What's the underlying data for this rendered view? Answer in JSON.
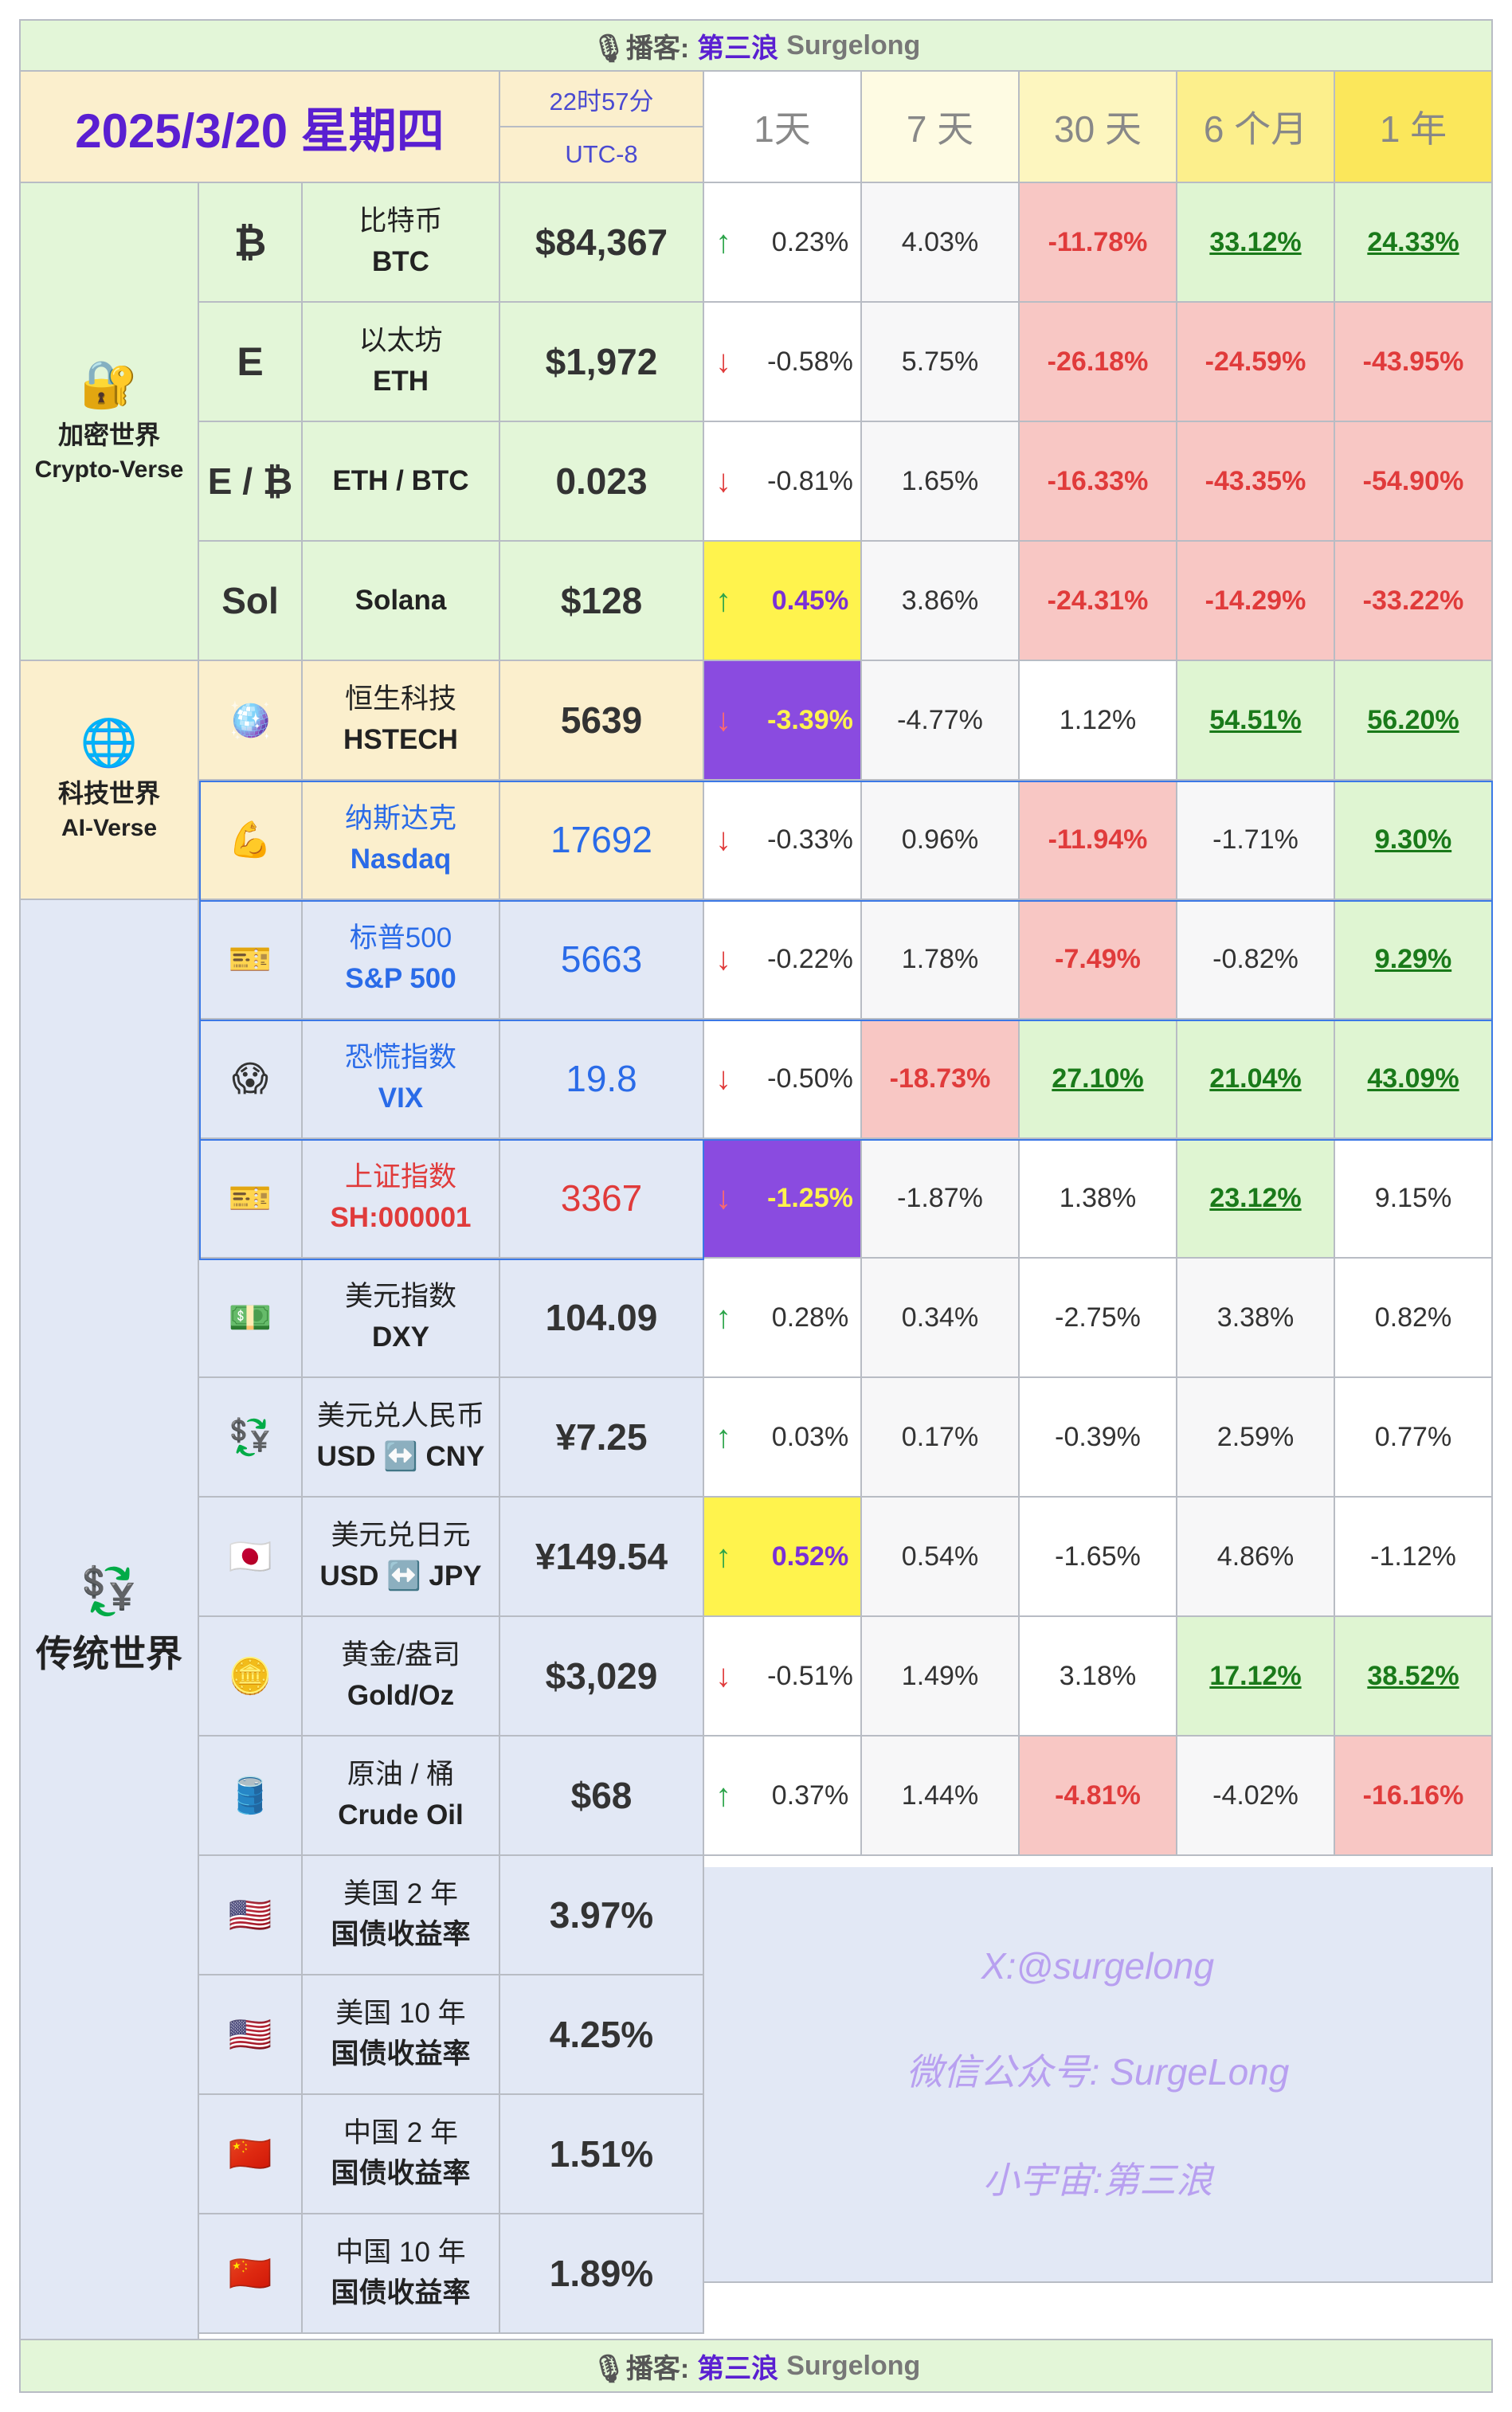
{
  "banner": {
    "icon": "microphone-icon",
    "prefix": "🎙播客:",
    "name": "第三浪",
    "latin": "Surgelong"
  },
  "header": {
    "date": "2025/3/20 星期四",
    "time": "22时57分",
    "tz": "UTC-8",
    "periods": [
      "1天",
      "7 天",
      "30 天",
      "6 个月",
      "1 年"
    ]
  },
  "groups": {
    "crypto": {
      "icon": "lock-key-icon",
      "glyph": "🔐",
      "zh": "加密世界",
      "en": "Crypto-Verse"
    },
    "tech": {
      "icon": "globe-icon",
      "glyph": "🌐",
      "zh": "科技世界",
      "en": "AI-Verse"
    },
    "trad": {
      "icon": "currency-exchange-icon",
      "glyph": "💱",
      "zh": "传统世界"
    }
  },
  "rows": [
    {
      "sym": "₿",
      "zh": "比特币",
      "en": "BTC",
      "price": "$84,367",
      "dir": "up",
      "d1": "0.23%",
      "d7": "4.03%",
      "d30": "-11.78%",
      "m6": "33.12%",
      "y1": "24.33%"
    },
    {
      "sym": "Ε",
      "zh": "以太坊",
      "en": "ETH",
      "price": "$1,972",
      "dir": "dn",
      "d1": "-0.58%",
      "d7": "5.75%",
      "d30": "-26.18%",
      "m6": "-24.59%",
      "y1": "-43.95%"
    },
    {
      "sym": "Ε / ₿",
      "zh": "",
      "en": "ETH / BTC",
      "price": "0.023",
      "dir": "dn",
      "d1": "-0.81%",
      "d7": "1.65%",
      "d30": "-16.33%",
      "m6": "-43.35%",
      "y1": "-54.90%"
    },
    {
      "sym": "Sol",
      "zh": "",
      "en": "Solana",
      "price": "$128",
      "dir": "up",
      "d1": "0.45%",
      "d7": "3.86%",
      "d30": "-24.31%",
      "m6": "-14.29%",
      "y1": "-33.22%"
    },
    {
      "sym": "🪩",
      "zh": "恒生科技",
      "en": "HSTECH",
      "price": "5639",
      "dir": "dn",
      "d1": "-3.39%",
      "d7": "-4.77%",
      "d30": "1.12%",
      "m6": "54.51%",
      "y1": "56.20%"
    },
    {
      "sym": "💪",
      "zh": "纳斯达克",
      "en": "Nasdaq",
      "price": "17692",
      "dir": "dn",
      "d1": "-0.33%",
      "d7": "0.96%",
      "d30": "-11.94%",
      "m6": "-1.71%",
      "y1": "9.30%"
    },
    {
      "sym": "🎫",
      "zh": "标普500",
      "en": "S&P 500",
      "price": "5663",
      "dir": "dn",
      "d1": "-0.22%",
      "d7": "1.78%",
      "d30": "-7.49%",
      "m6": "-0.82%",
      "y1": "9.29%"
    },
    {
      "sym": "😱",
      "zh": "恐慌指数",
      "en": "VIX",
      "price": "19.8",
      "dir": "dn",
      "d1": "-0.50%",
      "d7": "-18.73%",
      "d30": "27.10%",
      "m6": "21.04%",
      "y1": "43.09%"
    },
    {
      "sym": "🎫",
      "zh": "上证指数",
      "en": "SH:000001",
      "price": "3367",
      "dir": "dn",
      "d1": "-1.25%",
      "d7": "-1.87%",
      "d30": "1.38%",
      "m6": "23.12%",
      "y1": "9.15%"
    },
    {
      "sym": "💵",
      "zh": "美元指数",
      "en": "DXY",
      "price": "104.09",
      "dir": "up",
      "d1": "0.28%",
      "d7": "0.34%",
      "d30": "-2.75%",
      "m6": "3.38%",
      "y1": "0.82%"
    },
    {
      "sym": "💱",
      "zh": "美元兑人民币",
      "en": "USD ↔️ CNY",
      "price": "¥7.25",
      "dir": "up",
      "d1": "0.03%",
      "d7": "0.17%",
      "d30": "-0.39%",
      "m6": "2.59%",
      "y1": "0.77%"
    },
    {
      "sym": "🇯🇵",
      "zh": "美元兑日元",
      "en": "USD ↔️ JPY",
      "price": "¥149.54",
      "dir": "up",
      "d1": "0.52%",
      "d7": "0.54%",
      "d30": "-1.65%",
      "m6": "4.86%",
      "y1": "-1.12%"
    },
    {
      "sym": "🪙",
      "zh": "黄金/盎司",
      "en": "Gold/Oz",
      "price": "$3,029",
      "dir": "dn",
      "d1": "-0.51%",
      "d7": "1.49%",
      "d30": "3.18%",
      "m6": "17.12%",
      "y1": "38.52%"
    },
    {
      "sym": "🛢️",
      "zh": "原油 / 桶",
      "en": "Crude Oil",
      "price": "$68",
      "dir": "up",
      "d1": "0.37%",
      "d7": "1.44%",
      "d30": "-4.81%",
      "m6": "-4.02%",
      "y1": "-16.16%"
    },
    {
      "sym": "🇺🇸",
      "zh": "美国 2 年",
      "en": "国债收益率",
      "price": "3.97%"
    },
    {
      "sym": "🇺🇸",
      "zh": "美国 10 年",
      "en": "国债收益率",
      "price": "4.25%"
    },
    {
      "sym": "🇨🇳",
      "zh": "中国 2 年",
      "en": "国债收益率",
      "price": "1.51%"
    },
    {
      "sym": "🇨🇳",
      "zh": "中国 10 年",
      "en": "国债收益率",
      "price": "1.89%"
    }
  ],
  "arrows": {
    "up": "↑",
    "dn": "↓"
  },
  "notes": [
    "X:@surgelong",
    "微信公众号: SurgeLong",
    "小宇宙:第三浪"
  ]
}
